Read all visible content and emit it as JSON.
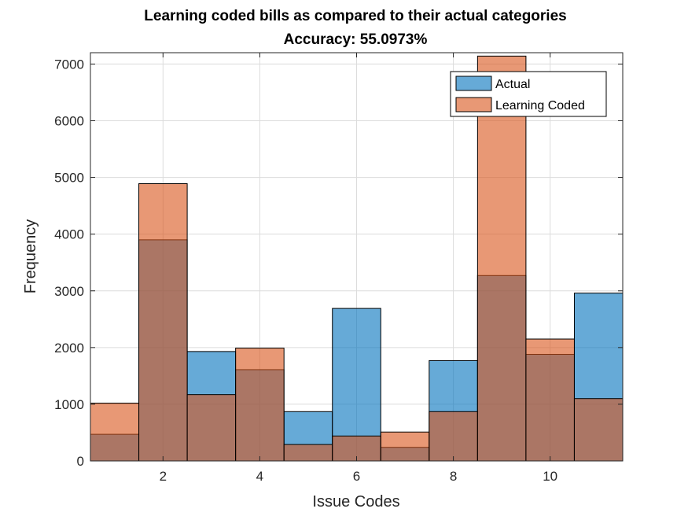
{
  "chart_data": {
    "type": "bar",
    "title": "Learning coded bills as compared to their actual categories",
    "subtitle": "Accuracy: 55.0973%",
    "xlabel": "Issue Codes",
    "ylabel": "Frequency",
    "xlim": [
      0.5,
      11.5
    ],
    "ylim": [
      0,
      7200
    ],
    "xticks": [
      2,
      4,
      6,
      8,
      10
    ],
    "yticks": [
      0,
      1000,
      2000,
      3000,
      4000,
      5000,
      6000,
      7000
    ],
    "grid": true,
    "legend_position": "top-right",
    "categories": [
      1,
      2,
      3,
      4,
      5,
      6,
      7,
      8,
      9,
      10,
      11
    ],
    "series": [
      {
        "name": "Actual",
        "color": "#0072bd",
        "values": [
          470,
          3900,
          1930,
          1610,
          870,
          2690,
          240,
          1770,
          3270,
          1880,
          2960
        ]
      },
      {
        "name": "Learning Coded",
        "color": "#d95319",
        "values": [
          1020,
          4890,
          1170,
          1990,
          290,
          440,
          510,
          870,
          7140,
          2150,
          1100
        ]
      }
    ]
  }
}
